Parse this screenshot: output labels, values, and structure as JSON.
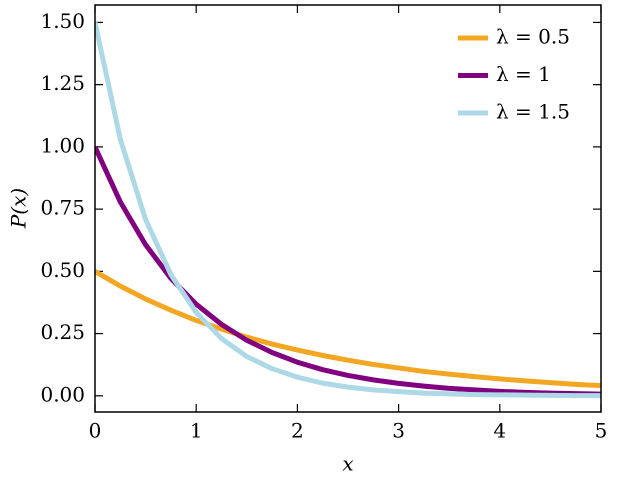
{
  "chart_data": {
    "type": "line",
    "xlabel": "x",
    "ylabel": "P(x)",
    "x": [
      0,
      0.25,
      0.5,
      0.75,
      1,
      1.25,
      1.5,
      1.75,
      2,
      2.25,
      2.5,
      2.75,
      3,
      3.25,
      3.5,
      3.75,
      4,
      4.25,
      4.5,
      4.75,
      5
    ],
    "series": [
      {
        "name": "λ = 0.5",
        "color": "#f3a621",
        "values": [
          0.5,
          0.441,
          0.389,
          0.344,
          0.303,
          0.268,
          0.236,
          0.208,
          0.184,
          0.162,
          0.143,
          0.126,
          0.112,
          0.098,
          0.087,
          0.077,
          0.068,
          0.06,
          0.053,
          0.046,
          0.041
        ]
      },
      {
        "name": "λ = 1",
        "color": "#800080",
        "values": [
          1,
          0.779,
          0.607,
          0.472,
          0.368,
          0.287,
          0.223,
          0.174,
          0.135,
          0.105,
          0.082,
          0.064,
          0.05,
          0.039,
          0.03,
          0.024,
          0.018,
          0.014,
          0.011,
          0.009,
          0.007
        ]
      },
      {
        "name": "λ = 1.5",
        "color": "#add8e6",
        "values": [
          1.5,
          1.031,
          0.708,
          0.487,
          0.335,
          0.23,
          0.158,
          0.109,
          0.075,
          0.051,
          0.035,
          0.024,
          0.017,
          0.011,
          0.008,
          0.005,
          0.004,
          0.003,
          0.002,
          0.001,
          0.001
        ]
      }
    ],
    "xlim": [
      0,
      5
    ],
    "xticks": [
      0,
      1,
      2,
      3,
      4,
      5
    ],
    "ylim": [
      -0.065,
      1.57
    ],
    "yticks": [
      {
        "value": 0,
        "label": "0.00"
      },
      {
        "value": 0.25,
        "label": "0.25"
      },
      {
        "value": 0.5,
        "label": "0.50"
      },
      {
        "value": 0.75,
        "label": "0.75"
      },
      {
        "value": 1,
        "label": "1.00"
      },
      {
        "value": 1.25,
        "label": "1.25"
      },
      {
        "value": 1.5,
        "label": "1.50"
      }
    ],
    "legend": "upper right",
    "grid": false
  }
}
